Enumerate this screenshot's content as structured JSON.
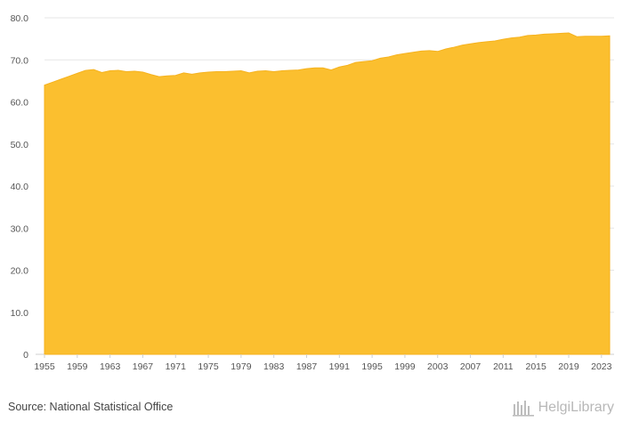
{
  "footer": {
    "source": "Source: National Statistical Office",
    "brand": "HelgiLibrary"
  },
  "colors": {
    "fill": "#fbbf2f",
    "stroke": "#f6b21d",
    "grid": "#e6e6e6"
  },
  "chart_data": {
    "type": "area",
    "title": "",
    "xlabel": "",
    "ylabel": "",
    "xlim": [
      1955,
      2024
    ],
    "ylim": [
      0,
      80
    ],
    "yticks": [
      0,
      10,
      20,
      30,
      40,
      50,
      60,
      70,
      80
    ],
    "ytick_labels": [
      "0",
      "10.0",
      "20.0",
      "30.0",
      "40.0",
      "50.0",
      "60.0",
      "70.0",
      "80.0"
    ],
    "xticks": [
      1955,
      1959,
      1963,
      1967,
      1971,
      1975,
      1979,
      1983,
      1987,
      1991,
      1995,
      1999,
      2003,
      2007,
      2011,
      2015,
      2019,
      2023
    ],
    "grid": true,
    "series": [
      {
        "x": [
          1955,
          1956,
          1957,
          1958,
          1959,
          1960,
          1961,
          1962,
          1963,
          1964,
          1965,
          1966,
          1967,
          1968,
          1969,
          1970,
          1971,
          1972,
          1973,
          1974,
          1975,
          1976,
          1977,
          1978,
          1979,
          1980,
          1981,
          1982,
          1983,
          1984,
          1985,
          1986,
          1987,
          1988,
          1989,
          1990,
          1991,
          1992,
          1993,
          1994,
          1995,
          1996,
          1997,
          1998,
          1999,
          2000,
          2001,
          2002,
          2003,
          2004,
          2005,
          2006,
          2007,
          2008,
          2009,
          2010,
          2011,
          2012,
          2013,
          2014,
          2015,
          2016,
          2017,
          2018,
          2019,
          2020,
          2021,
          2022,
          2023,
          2024
        ],
        "y": [
          64.0,
          64.7,
          65.4,
          66.1,
          66.8,
          67.5,
          67.7,
          67.0,
          67.4,
          67.5,
          67.2,
          67.3,
          67.1,
          66.5,
          66.0,
          66.2,
          66.3,
          66.9,
          66.6,
          66.9,
          67.1,
          67.2,
          67.2,
          67.3,
          67.4,
          66.9,
          67.3,
          67.4,
          67.2,
          67.4,
          67.5,
          67.6,
          67.9,
          68.1,
          68.1,
          67.6,
          68.3,
          68.7,
          69.4,
          69.6,
          69.8,
          70.4,
          70.7,
          71.2,
          71.5,
          71.8,
          72.1,
          72.2,
          72.0,
          72.6,
          73.0,
          73.5,
          73.8,
          74.1,
          74.3,
          74.5,
          74.9,
          75.2,
          75.4,
          75.8,
          75.9,
          76.1,
          76.2,
          76.3,
          76.4,
          75.5,
          75.6,
          75.6,
          75.6,
          75.7
        ]
      }
    ]
  }
}
